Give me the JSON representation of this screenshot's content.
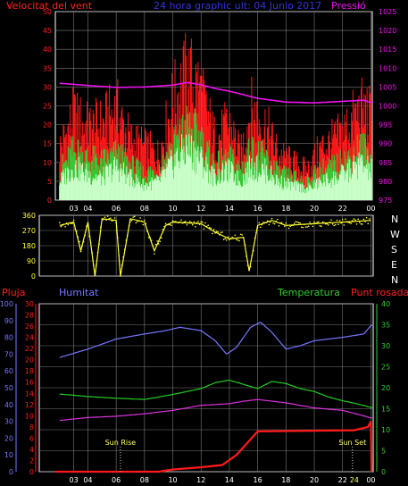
{
  "header": {
    "title": "24 hora graphic ult: 04 Junio 2017",
    "left_label": "Velocitat del vent",
    "right_label": "Pressió"
  },
  "colors": {
    "background": "#000000",
    "axis": "#ffffff",
    "grid": "#7a7a7a",
    "wind_gust": "#ff1a1a",
    "wind_avg": "#33cc33",
    "wind_base": "#ccffcc",
    "direction": "#ffff33",
    "pressure": "#ee11ee",
    "rain": "#ff1a1a",
    "humidity": "#7777ff",
    "temperature": "#22cc22",
    "dewpoint": "#dd33dd",
    "left_axis_text": "#ff2222",
    "right_axis_text": "#ee11ee",
    "green_axis_text": "#33cc33"
  },
  "bottom_panel": {
    "left_label": "Pluja",
    "humidity_label": "Humitat",
    "temp_label": "Temperatura",
    "dew_label": "Punt rosada"
  },
  "events": {
    "sunrise_label": "Sun Rise",
    "sunset_label": "Sun Set",
    "sunset_tick_label": "24"
  },
  "compass": [
    "N",
    "W",
    "S",
    "E",
    "N"
  ],
  "chart_data": [
    {
      "type": "line",
      "name": "wind_and_pressure",
      "x_ticks": [
        "03",
        "04",
        "06",
        "08",
        "10",
        "12",
        "14",
        "16",
        "18",
        "20",
        "22",
        "00"
      ],
      "x_hours": [
        3,
        4,
        6,
        8,
        10,
        12,
        14,
        16,
        18,
        20,
        22,
        24
      ],
      "x_range": [
        1.7,
        24.1
      ],
      "y_left_range": [
        0,
        50
      ],
      "y_left_ticks": [
        0,
        5,
        10,
        15,
        20,
        25,
        30,
        35,
        40,
        45,
        50
      ],
      "y_right_range": [
        975,
        1025
      ],
      "y_right_ticks": [
        975,
        980,
        985,
        990,
        995,
        1000,
        1005,
        1010,
        1015,
        1020,
        1025
      ],
      "series": [
        {
          "key": "gust",
          "values": [
            [
              2,
              14
            ],
            [
              3,
              22
            ],
            [
              4,
              19
            ],
            [
              5,
              20
            ],
            [
              6,
              24
            ],
            [
              7,
              16
            ],
            [
              8,
              14
            ],
            [
              9,
              12
            ],
            [
              10,
              26
            ],
            [
              11,
              33
            ],
            [
              11.8,
              30
            ],
            [
              12.5,
              22
            ],
            [
              13,
              16
            ],
            [
              14,
              20
            ],
            [
              14.8,
              12
            ],
            [
              15.5,
              24
            ],
            [
              16.5,
              20
            ],
            [
              17.5,
              12
            ],
            [
              18.5,
              10
            ],
            [
              19.5,
              8
            ],
            [
              20.5,
              14
            ],
            [
              21.5,
              16
            ],
            [
              22.5,
              20
            ],
            [
              23.2,
              24
            ],
            [
              24,
              22
            ]
          ]
        },
        {
          "key": "average",
          "values": [
            [
              2,
              8
            ],
            [
              3,
              13
            ],
            [
              4,
              11
            ],
            [
              5,
              10
            ],
            [
              6,
              12
            ],
            [
              7,
              9
            ],
            [
              8,
              7
            ],
            [
              9,
              8
            ],
            [
              10,
              14
            ],
            [
              11,
              19
            ],
            [
              11.8,
              17
            ],
            [
              12.5,
              12
            ],
            [
              13,
              9
            ],
            [
              14,
              11
            ],
            [
              14.8,
              8
            ],
            [
              15.5,
              13
            ],
            [
              16.5,
              11
            ],
            [
              17.5,
              7
            ],
            [
              18.5,
              6
            ],
            [
              19.5,
              5
            ],
            [
              20.5,
              8
            ],
            [
              21.5,
              9
            ],
            [
              22.5,
              11
            ],
            [
              23.2,
              14
            ],
            [
              24,
              12
            ]
          ]
        },
        {
          "key": "base",
          "values": [
            [
              2,
              5
            ],
            [
              3,
              9
            ],
            [
              4,
              7
            ],
            [
              5,
              6
            ],
            [
              6,
              9
            ],
            [
              7,
              6
            ],
            [
              8,
              4
            ],
            [
              9,
              5
            ],
            [
              10,
              10
            ],
            [
              11,
              14
            ],
            [
              11.8,
              12
            ],
            [
              12.5,
              8
            ],
            [
              13,
              6
            ],
            [
              14,
              8
            ],
            [
              14.8,
              5
            ],
            [
              15.5,
              9
            ],
            [
              16.5,
              8
            ],
            [
              17.5,
              5
            ],
            [
              18.5,
              4
            ],
            [
              19.5,
              3
            ],
            [
              20.5,
              5
            ],
            [
              21.5,
              6
            ],
            [
              22.5,
              8
            ],
            [
              23.2,
              10
            ],
            [
              24,
              8
            ]
          ]
        },
        {
          "key": "pressure",
          "values": [
            [
              2,
              1006.0
            ],
            [
              4,
              1005.4
            ],
            [
              6,
              1004.9
            ],
            [
              8,
              1005.0
            ],
            [
              10,
              1005.5
            ],
            [
              11,
              1006.2
            ],
            [
              12,
              1005.6
            ],
            [
              13,
              1004.6
            ],
            [
              14,
              1003.9
            ],
            [
              16,
              1002.0
            ],
            [
              18,
              1001.0
            ],
            [
              20,
              1000.8
            ],
            [
              22,
              1001.2
            ],
            [
              23.5,
              1001.5
            ],
            [
              24,
              1000.9
            ]
          ]
        }
      ]
    },
    {
      "type": "line",
      "name": "wind_direction",
      "y_range": [
        0,
        360
      ],
      "y_ticks": [
        0,
        90,
        180,
        270,
        360
      ],
      "values": [
        [
          2,
          300
        ],
        [
          3,
          320
        ],
        [
          3.5,
          150
        ],
        [
          4.0,
          320
        ],
        [
          4.5,
          0
        ],
        [
          5,
          340
        ],
        [
          6,
          330
        ],
        [
          6.3,
          0
        ],
        [
          7,
          340
        ],
        [
          8,
          320
        ],
        [
          8.7,
          150
        ],
        [
          9.5,
          300
        ],
        [
          10,
          320
        ],
        [
          12,
          310
        ],
        [
          13,
          260
        ],
        [
          14,
          220
        ],
        [
          15,
          230
        ],
        [
          15.4,
          30
        ],
        [
          16,
          300
        ],
        [
          17,
          330
        ],
        [
          18,
          300
        ],
        [
          20,
          310
        ],
        [
          22,
          320
        ],
        [
          24,
          330
        ]
      ]
    },
    {
      "type": "line",
      "name": "rain_humidity_temperature_dewpoint",
      "x_ticks": [
        "03",
        "04",
        "06",
        "08",
        "10",
        "12",
        "14",
        "16",
        "18",
        "20",
        "22",
        "00"
      ],
      "x_hours": [
        3,
        4,
        6,
        8,
        10,
        12,
        14,
        16,
        18,
        20,
        22,
        24
      ],
      "x_range": [
        1.7,
        24.1
      ],
      "y_rain_range": [
        0,
        30
      ],
      "y_rain_ticks": [
        0,
        2,
        4,
        6,
        8,
        10,
        12,
        14,
        16,
        18,
        20,
        22,
        24,
        26,
        28,
        30
      ],
      "y_humidity_range": [
        0,
        100
      ],
      "y_humidity_ticks": [
        0,
        10,
        20,
        30,
        40,
        50,
        60,
        70,
        80,
        90,
        100
      ],
      "y_temp_range": [
        0,
        40
      ],
      "y_temp_ticks": [
        0,
        5,
        10,
        15,
        20,
        25,
        30,
        35,
        40
      ],
      "series": [
        {
          "key": "humidity",
          "values": [
            [
              2,
              68
            ],
            [
              4,
              73
            ],
            [
              6,
              79
            ],
            [
              8,
              82
            ],
            [
              9.5,
              84
            ],
            [
              10.5,
              86
            ],
            [
              12,
              84
            ],
            [
              13,
              78
            ],
            [
              13.8,
              70
            ],
            [
              14.5,
              74
            ],
            [
              15.5,
              86
            ],
            [
              16.2,
              89
            ],
            [
              17,
              83
            ],
            [
              18,
              73
            ],
            [
              19,
              75
            ],
            [
              20,
              78
            ],
            [
              22,
              80
            ],
            [
              23.5,
              82
            ],
            [
              24,
              87
            ]
          ]
        },
        {
          "key": "temperature",
          "values": [
            [
              2,
              18.5
            ],
            [
              4,
              17.9
            ],
            [
              6,
              17.5
            ],
            [
              8,
              17.2
            ],
            [
              10,
              18.4
            ],
            [
              12,
              19.8
            ],
            [
              13,
              21.2
            ],
            [
              14,
              21.8
            ],
            [
              15,
              20.8
            ],
            [
              16,
              19.8
            ],
            [
              17,
              21.5
            ],
            [
              18,
              21.0
            ],
            [
              19,
              19.8
            ],
            [
              20,
              19.1
            ],
            [
              21,
              17.8
            ],
            [
              22,
              16.9
            ],
            [
              23,
              16.2
            ],
            [
              24,
              15.3
            ]
          ]
        },
        {
          "key": "dewpoint",
          "values": [
            [
              2,
              12.2
            ],
            [
              4,
              12.9
            ],
            [
              6,
              13.2
            ],
            [
              8,
              13.8
            ],
            [
              10,
              14.6
            ],
            [
              12,
              15.8
            ],
            [
              14,
              16.2
            ],
            [
              15,
              16.8
            ],
            [
              16,
              17.2
            ],
            [
              18,
              16.4
            ],
            [
              20,
              15.2
            ],
            [
              22,
              14.6
            ],
            [
              23.5,
              13.3
            ],
            [
              24,
              12.8
            ]
          ]
        },
        {
          "key": "rain",
          "values": [
            [
              1.7,
              0
            ],
            [
              9,
              0
            ],
            [
              10,
              0.4
            ],
            [
              12,
              0.8
            ],
            [
              13.5,
              1.2
            ],
            [
              14.5,
              3
            ],
            [
              16,
              7.2
            ],
            [
              22.8,
              7.4
            ],
            [
              23.8,
              8.0
            ],
            [
              24,
              9.0
            ],
            [
              24.05,
              0
            ]
          ]
        }
      ]
    }
  ]
}
